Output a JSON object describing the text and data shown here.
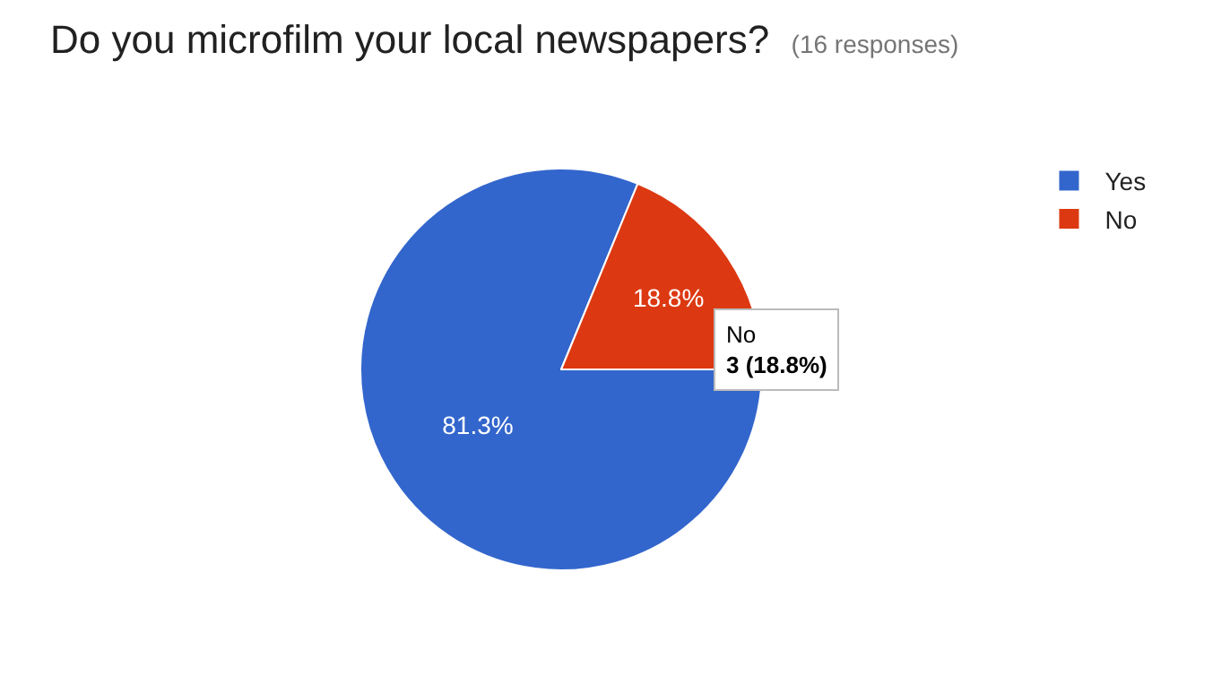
{
  "chart_data": {
    "type": "pie",
    "title": "Do you microfilm your local newspapers?",
    "subtitle": "(16 responses)",
    "categories": [
      "Yes",
      "No"
    ],
    "values": [
      81.3,
      18.8
    ],
    "value_labels": [
      "81.3%",
      "18.8%"
    ],
    "colors": [
      "#3366cc",
      "#dc3912"
    ],
    "legend": "top right",
    "annotations": [
      "No",
      "3 (18.8%)"
    ]
  }
}
